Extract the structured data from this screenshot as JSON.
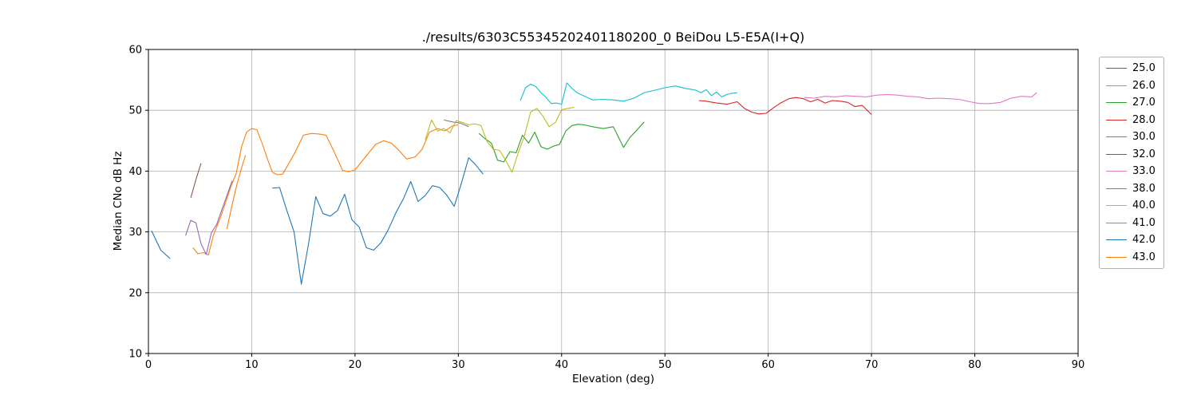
{
  "chart_data": {
    "type": "line",
    "title": "./results/6303C55345202401180200_0 BeiDou L5-E5A(I+Q)",
    "xlabel": "Elevation (deg)",
    "ylabel": "Median CNo dB Hz",
    "xlim": [
      0,
      90
    ],
    "ylim": [
      10,
      60
    ],
    "xticks": [
      0,
      10,
      20,
      30,
      40,
      50,
      60,
      70,
      80,
      90
    ],
    "yticks": [
      10,
      20,
      30,
      40,
      50,
      60
    ],
    "grid": true,
    "grid_color": "#b0b0b0",
    "legend_position": "right",
    "series": [
      {
        "name": "25.0",
        "color": "#1f77b4",
        "x": [
          0.3,
          1.2,
          2.1
        ],
        "y": [
          30.2,
          27.0,
          25.6
        ]
      },
      {
        "name": "26.0",
        "color": "#ff7f0e",
        "x": [
          4.3,
          4.8,
          5.3,
          5.8,
          6.3,
          7.0,
          7.5,
          8.0,
          8.5,
          9.0,
          9.5,
          10.0,
          10.5,
          11.0,
          11.5,
          12.0,
          12.5,
          13.0,
          13.5,
          14.2,
          15.0,
          15.8,
          16.5,
          17.2,
          18.0,
          18.8,
          19.4,
          20.0,
          21.0,
          22.0,
          22.8,
          23.5,
          24.2,
          25.0,
          25.8,
          26.5,
          27.2,
          28.0,
          28.7,
          29.4,
          30.0
        ],
        "y": [
          27.4,
          26.4,
          26.6,
          26.2,
          29.5,
          32.5,
          35.0,
          37.6,
          39.6,
          43.9,
          46.4,
          47.0,
          46.8,
          44.6,
          42.1,
          39.8,
          39.4,
          39.5,
          41.0,
          43.1,
          45.9,
          46.2,
          46.1,
          45.9,
          43.1,
          40.1,
          39.9,
          40.2,
          42.3,
          44.4,
          45.0,
          44.6,
          43.5,
          42.0,
          42.3,
          43.6,
          46.4,
          47.0,
          46.6,
          47.4,
          47.6
        ]
      },
      {
        "name": "27.0",
        "color": "#2ca02c",
        "x": [
          32.0,
          32.6,
          33.2,
          33.8,
          34.4,
          35.0,
          35.6,
          36.2,
          36.8,
          37.4,
          38.0,
          38.6,
          39.2,
          39.8,
          40.4,
          41.0,
          41.6,
          42.2,
          43.0,
          44.0,
          45.0,
          46.0,
          46.6,
          47.2,
          48.0
        ],
        "y": [
          46.2,
          45.3,
          44.6,
          41.8,
          41.5,
          43.2,
          43.0,
          45.9,
          44.6,
          46.4,
          44.0,
          43.6,
          44.1,
          44.4,
          46.6,
          47.5,
          47.7,
          47.6,
          47.3,
          47.0,
          47.3,
          43.9,
          45.5,
          46.6,
          48.1
        ]
      },
      {
        "name": "28.0",
        "color": "#d62728",
        "x": [
          53.3,
          54.0,
          55.0,
          56.0,
          57.0,
          57.7,
          58.4,
          59.1,
          59.8,
          60.5,
          61.2,
          62.0,
          62.7,
          63.4,
          64.1,
          64.8,
          65.5,
          66.2,
          67.0,
          67.7,
          68.4,
          69.1,
          70.0
        ],
        "y": [
          51.6,
          51.5,
          51.2,
          51.0,
          51.4,
          50.3,
          49.7,
          49.4,
          49.5,
          50.4,
          51.2,
          51.9,
          52.1,
          51.9,
          51.4,
          51.8,
          51.2,
          51.6,
          51.5,
          51.3,
          50.6,
          50.8,
          49.3
        ]
      },
      {
        "name": "30.0",
        "color": "#9467bd",
        "x": [
          3.6,
          4.1,
          4.6,
          5.1,
          5.6,
          6.1,
          6.6,
          7.1,
          7.6,
          8.1
        ],
        "y": [
          29.4,
          31.9,
          31.5,
          28.0,
          26.3,
          29.9,
          31.2,
          33.6,
          36.0,
          38.4
        ]
      },
      {
        "name": "32.0",
        "color": "#8c564b",
        "x": [
          4.1,
          4.6,
          5.1
        ],
        "y": [
          35.6,
          38.6,
          41.3
        ]
      },
      {
        "name": "33.0",
        "color": "#e377c2",
        "x": [
          63.5,
          64.5,
          65.5,
          66.5,
          67.5,
          68.5,
          69.5,
          70.5,
          71.5,
          72.5,
          73.5,
          74.5,
          75.5,
          76.5,
          77.5,
          78.5,
          79.5,
          80.5,
          81.5,
          82.5,
          83.5,
          84.5,
          85.5,
          86.0
        ],
        "y": [
          52.1,
          52.0,
          52.3,
          52.2,
          52.4,
          52.3,
          52.2,
          52.5,
          52.6,
          52.5,
          52.3,
          52.2,
          51.9,
          52.0,
          51.9,
          51.8,
          51.4,
          51.1,
          51.1,
          51.3,
          52.0,
          52.3,
          52.2,
          52.9
        ]
      },
      {
        "name": "38.0",
        "color": "#7f7f7f",
        "x": [
          28.6,
          29.4,
          30.2,
          31.0
        ],
        "y": [
          48.4,
          48.1,
          47.9,
          47.3
        ]
      },
      {
        "name": "40.0",
        "color": "#bcbd22",
        "x": [
          26.8,
          27.4,
          28.0,
          28.6,
          29.2,
          29.8,
          30.4,
          31.0,
          31.6,
          32.2,
          32.8,
          33.4,
          34.0,
          34.6,
          35.2,
          35.8,
          36.4,
          37.0,
          37.6,
          38.2,
          38.8,
          39.4,
          40.0,
          40.6,
          41.2
        ],
        "y": [
          45.1,
          48.4,
          46.6,
          47.0,
          46.3,
          48.3,
          48.0,
          47.6,
          47.8,
          47.5,
          44.8,
          43.6,
          43.4,
          41.7,
          39.8,
          43.0,
          45.8,
          49.7,
          50.3,
          49.0,
          47.3,
          48.0,
          50.1,
          50.3,
          50.5
        ]
      },
      {
        "name": "41.0",
        "color": "#17becf",
        "x": [
          36.0,
          36.5,
          37.0,
          37.5,
          38.0,
          38.5,
          39.0,
          39.5,
          40.0,
          40.5,
          41.0,
          41.5,
          42.0,
          43.0,
          44.0,
          45.0,
          46.0,
          47.0,
          48.0,
          49.0,
          50.0,
          51.0,
          52.0,
          53.0,
          53.5,
          54.0,
          54.5,
          55.0,
          55.5,
          56.0,
          56.5,
          57.0
        ],
        "y": [
          51.6,
          53.7,
          54.3,
          53.9,
          52.9,
          52.1,
          51.1,
          51.2,
          51.0,
          54.5,
          53.6,
          52.9,
          52.5,
          51.7,
          51.8,
          51.7,
          51.5,
          52.0,
          52.9,
          53.3,
          53.7,
          54.0,
          53.6,
          53.3,
          52.9,
          53.4,
          52.4,
          53.0,
          52.2,
          52.6,
          52.8,
          52.9
        ]
      },
      {
        "name": "42.0",
        "color": "#1f77b4",
        "x": [
          12.0,
          12.7,
          13.4,
          14.1,
          14.8,
          15.5,
          16.2,
          16.9,
          17.6,
          18.3,
          19.0,
          19.7,
          20.4,
          21.1,
          21.8,
          22.5,
          23.2,
          24.0,
          24.7,
          25.4,
          26.1,
          26.8,
          27.5,
          28.2,
          28.9,
          29.6,
          30.3,
          31.0,
          31.7,
          32.4
        ],
        "y": [
          37.2,
          37.3,
          33.5,
          30.0,
          21.4,
          28.0,
          35.8,
          33.0,
          32.6,
          33.5,
          36.2,
          32.0,
          30.8,
          27.4,
          27.0,
          28.2,
          30.3,
          33.3,
          35.5,
          38.3,
          35.0,
          36.0,
          37.6,
          37.3,
          36.0,
          34.2,
          38.0,
          42.2,
          41.0,
          39.5
        ]
      },
      {
        "name": "43.0",
        "color": "#ff7f0e",
        "x": [
          7.6,
          8.1,
          8.6,
          9.1,
          9.4
        ],
        "y": [
          30.5,
          34.5,
          38.0,
          41.0,
          42.6
        ]
      }
    ]
  }
}
